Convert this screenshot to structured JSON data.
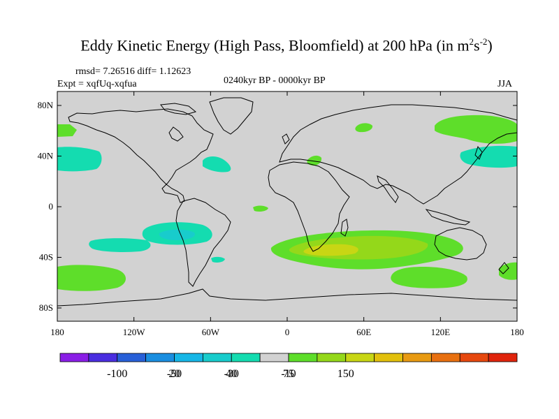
{
  "title_main": "Eddy Kinetic Energy (High Pass, Bloomfield) at 200 hPa (in m",
  "title_sup1": "2",
  "title_mid": "s",
  "title_sup2": "-2",
  "title_end": ")",
  "rmsd_text": "rmsd= 7.26516 diff= 1.12623",
  "expt_text": "Expt = xqfUq-xqfua",
  "period_text": "0240kyr BP - 0000kyr BP",
  "season_text": "JJA",
  "lat_labels": [
    "80N",
    "40N",
    "0",
    "40S",
    "80S"
  ],
  "lon_labels": [
    "180",
    "120W",
    "60W",
    "0",
    "60E",
    "120E",
    "180"
  ],
  "colorbar": {
    "colors": [
      "#8a1ee6",
      "#4a2ee0",
      "#2860d8",
      "#1a8ee0",
      "#16b6e6",
      "#18cccc",
      "#14dcb0",
      "#d2d2d2",
      "#5ede2a",
      "#94d81a",
      "#c8d614",
      "#e2c00c",
      "#e89a12",
      "#e87010",
      "#e6480e",
      "#e0240c"
    ],
    "labels": [
      "-100",
      "-50",
      "-30",
      "-10",
      "20",
      "40",
      "75",
      "150"
    ]
  },
  "colors": {
    "land_ocean_background": "#d2d2d2",
    "coastline": "#000000",
    "positive_light": "#5ede2a",
    "positive_mid": "#94d81a",
    "positive_high": "#c8d614",
    "negative_light": "#14dcb0",
    "negative_mid": "#18cccc"
  }
}
